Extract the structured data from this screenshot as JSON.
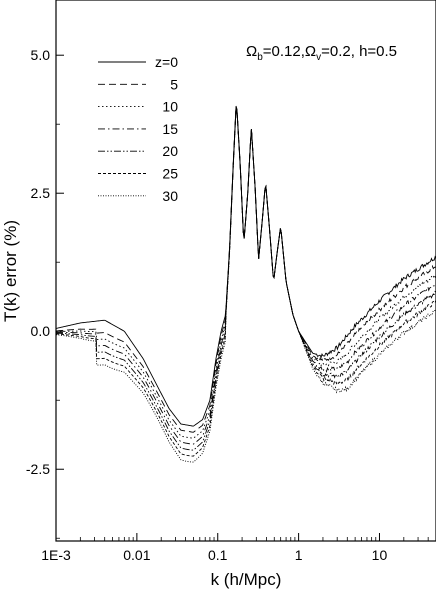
{
  "chart_data": {
    "type": "line",
    "title": "",
    "annotation": {
      "omega_symbol": "Ω",
      "b_sub": "b",
      "v_sub": "v",
      "omega_b_value": "=0.12,",
      "omega_v_value": "=0.2, h=0.5"
    },
    "xlabel": "k (h/Mpc)",
    "ylabel": "T(k) error (%)",
    "x_scale": "log",
    "xlim": [
      0.001,
      50
    ],
    "ylim": [
      -3.8,
      6.0
    ],
    "x_ticks": [
      {
        "value": 0.001,
        "label": "1E-3"
      },
      {
        "value": 0.01,
        "label": "0.01"
      },
      {
        "value": 0.1,
        "label": "0.1"
      },
      {
        "value": 1,
        "label": "1"
      },
      {
        "value": 10,
        "label": "10"
      }
    ],
    "y_ticks": [
      {
        "value": -2.5,
        "label": "-2.5"
      },
      {
        "value": 0.0,
        "label": "0.0"
      },
      {
        "value": 2.5,
        "label": "2.5"
      },
      {
        "value": 5.0,
        "label": "5.0"
      }
    ],
    "grid": false,
    "legend_position": "top-left",
    "series": [
      {
        "name": "z=0",
        "dash": "",
        "offset": 0.0,
        "early": 1.0
      },
      {
        "name": "5",
        "dash": "7,4",
        "offset": 0.18,
        "early": 0.0
      },
      {
        "name": "10",
        "dash": "1.5,2.5",
        "offset": 0.36,
        "early": -0.3
      },
      {
        "name": "15",
        "dash": "7,3,1.5,3",
        "offset": 0.54,
        "early": -0.6
      },
      {
        "name": "20",
        "dash": "7,2,1.5,2,1.5,2",
        "offset": 0.72,
        "early": -0.9
      },
      {
        "name": "25",
        "dash": "3,2",
        "offset": 0.9,
        "early": -1.2
      },
      {
        "name": "30",
        "dash": "1,1.5",
        "offset": 1.08,
        "early": -1.5
      }
    ],
    "base_curve": [
      [
        0.001,
        0.05
      ],
      [
        0.002,
        0.15
      ],
      [
        0.004,
        0.2
      ],
      [
        0.007,
        0.0
      ],
      [
        0.012,
        -0.5
      ],
      [
        0.018,
        -1.0
      ],
      [
        0.025,
        -1.4
      ],
      [
        0.035,
        -1.68
      ],
      [
        0.05,
        -1.72
      ],
      [
        0.065,
        -1.6
      ],
      [
        0.08,
        -1.25
      ],
      [
        0.095,
        -0.5
      ],
      [
        0.11,
        0.0
      ],
      [
        0.125,
        0.3
      ],
      [
        0.14,
        1.5
      ],
      [
        0.155,
        3.0
      ],
      [
        0.17,
        4.2
      ],
      [
        0.19,
        3.0
      ],
      [
        0.21,
        1.6
      ],
      [
        0.235,
        2.5
      ],
      [
        0.26,
        3.7
      ],
      [
        0.29,
        2.6
      ],
      [
        0.32,
        1.3
      ],
      [
        0.355,
        2.0
      ],
      [
        0.39,
        2.7
      ],
      [
        0.44,
        1.8
      ],
      [
        0.49,
        0.9
      ],
      [
        0.54,
        1.4
      ],
      [
        0.6,
        1.9
      ],
      [
        0.7,
        0.9
      ],
      [
        0.85,
        0.3
      ],
      [
        1.0,
        0.0
      ],
      [
        1.5,
        -0.4
      ],
      [
        2.0,
        -0.45
      ],
      [
        3.0,
        -0.3
      ],
      [
        5.0,
        0.1
      ],
      [
        10.0,
        0.55
      ],
      [
        20.0,
        0.95
      ],
      [
        50.0,
        1.35
      ]
    ],
    "high_k_noise": 0.08
  }
}
